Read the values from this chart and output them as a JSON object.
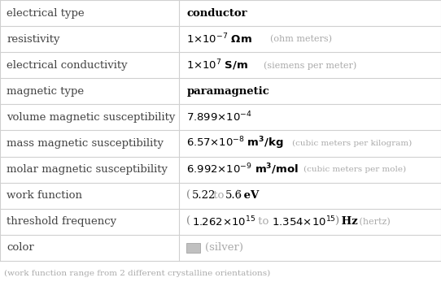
{
  "rows": [
    {
      "label": "electrical type",
      "row_type": "electrical_type"
    },
    {
      "label": "resistivity",
      "row_type": "resistivity"
    },
    {
      "label": "electrical conductivity",
      "row_type": "electrical_conductivity"
    },
    {
      "label": "magnetic type",
      "row_type": "magnetic_type"
    },
    {
      "label": "volume magnetic susceptibility",
      "row_type": "volume_mag_sus"
    },
    {
      "label": "mass magnetic susceptibility",
      "row_type": "mass_mag_sus"
    },
    {
      "label": "molar magnetic susceptibility",
      "row_type": "molar_mag_sus"
    },
    {
      "label": "work function",
      "row_type": "work_function"
    },
    {
      "label": "threshold frequency",
      "row_type": "threshold_freq"
    },
    {
      "label": "color",
      "row_type": "color"
    }
  ],
  "footer": "(work function range from 2 different crystalline orientations)",
  "bg_color": "#ffffff",
  "border_color": "#d0d0d0",
  "label_color": "#444444",
  "value_color": "#000000",
  "gray_color": "#aaaaaa",
  "paren_color": "#888888",
  "col_split": 0.405,
  "font_size": 9.5,
  "footer_size": 7.5,
  "label_font": "DejaVu Serif",
  "value_font": "DejaVu Serif"
}
